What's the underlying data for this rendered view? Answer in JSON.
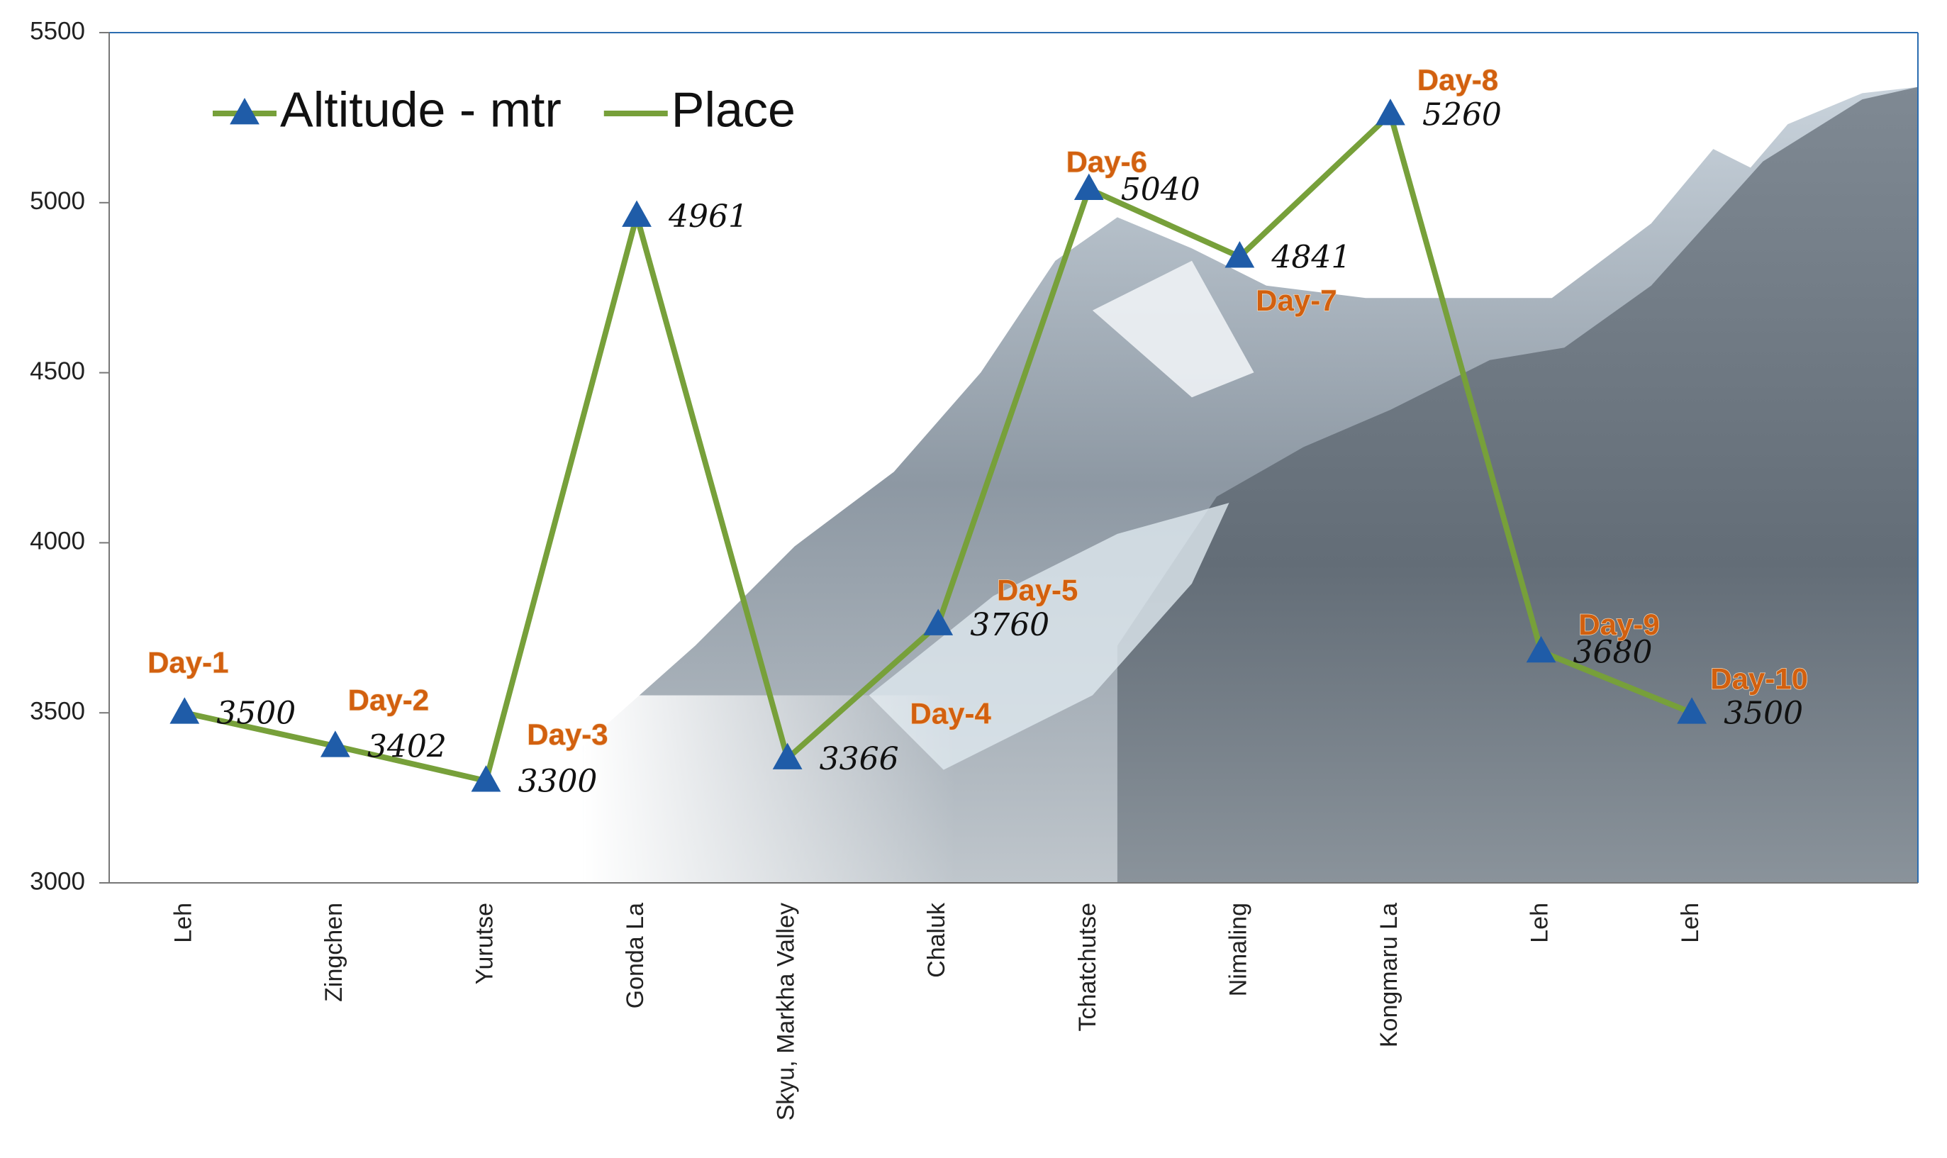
{
  "chart_data": {
    "type": "line",
    "categories": [
      "Leh",
      "Zingchen",
      "Yurutse",
      "Gonda La",
      "Skyu, Markha Valley",
      "Chaluk",
      "Tchatchutse",
      "Nimaling",
      "Kongmaru La",
      "Leh",
      "Leh",
      null
    ],
    "series": [
      {
        "name": "Altitude - mtr",
        "color": "#77a03a",
        "marker_color": "#1f5ca8",
        "values": [
          3500,
          3402,
          3300,
          4961,
          3366,
          3760,
          5040,
          4841,
          5260,
          3680,
          3500,
          null
        ]
      },
      {
        "name": "Place",
        "color": "#77a03a"
      }
    ],
    "day_labels": [
      "Day-1",
      "Day-2",
      "Day-3",
      null,
      "Day-4",
      "Day-5",
      "Day-6",
      "Day-7",
      "Day-8",
      "Day-9",
      "Day-10",
      null
    ],
    "ylim": [
      3000,
      5500
    ],
    "yticks": [
      3000,
      3500,
      4000,
      4500,
      5000,
      5500
    ],
    "grid": false,
    "legend": "top-left"
  }
}
